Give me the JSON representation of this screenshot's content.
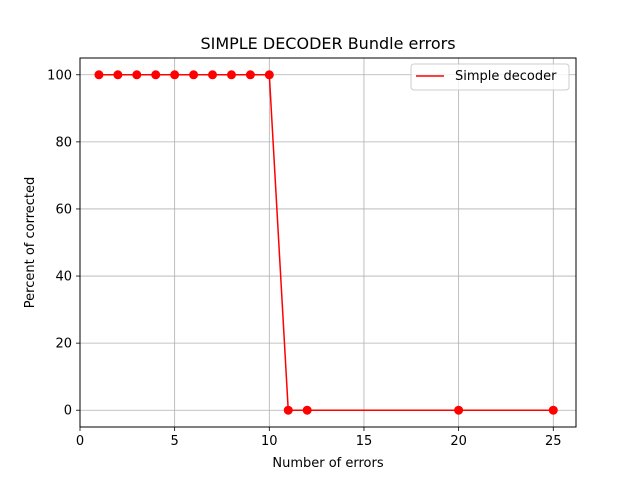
{
  "chart_data": {
    "type": "line",
    "title": "SIMPLE DECODER Bundle errors",
    "xlabel": "Number of errors",
    "ylabel": "Percent of corrected",
    "xlim": [
      0,
      26.2
    ],
    "ylim": [
      -5,
      105
    ],
    "xticks": [
      0,
      5,
      10,
      15,
      20,
      25
    ],
    "yticks": [
      0,
      20,
      40,
      60,
      80,
      100
    ],
    "x_tick_labels": [
      "0",
      "5",
      "10",
      "15",
      "20",
      "25"
    ],
    "y_tick_labels": [
      "0",
      "20",
      "40",
      "60",
      "80",
      "100"
    ],
    "grid": true,
    "legend_position": "top-right",
    "series": [
      {
        "name": "Simple decoder",
        "color": "#ff0000",
        "marker": "circle",
        "x": [
          1,
          2,
          3,
          4,
          5,
          6,
          7,
          8,
          9,
          10,
          11,
          12,
          20,
          25
        ],
        "y": [
          100,
          100,
          100,
          100,
          100,
          100,
          100,
          100,
          100,
          100,
          0,
          0,
          0,
          0
        ]
      }
    ]
  }
}
